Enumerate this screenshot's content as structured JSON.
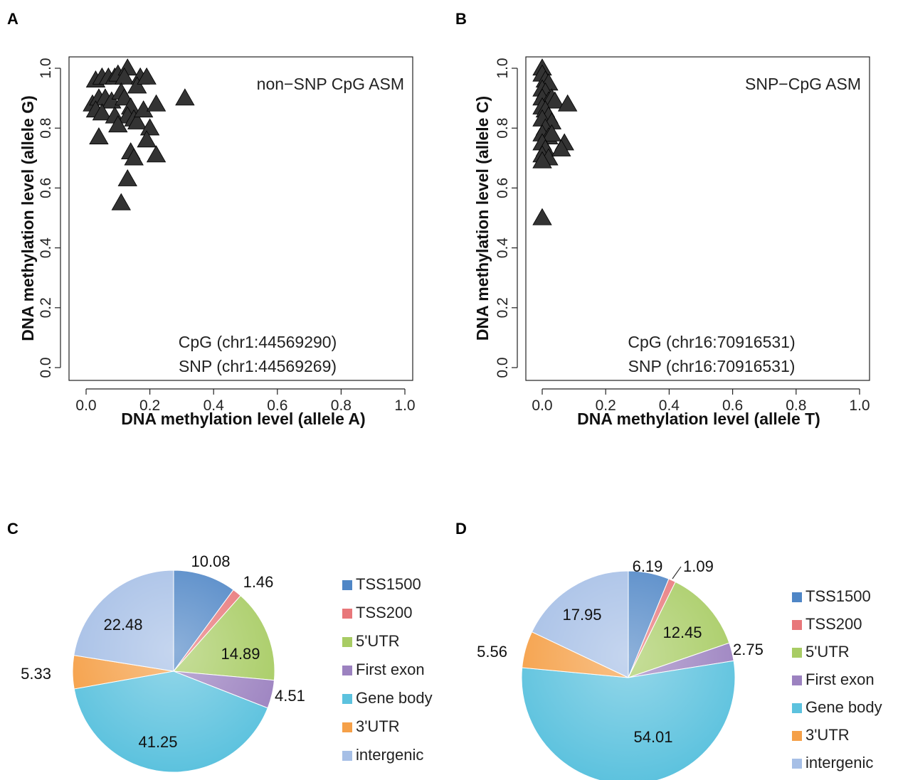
{
  "chart_data": [
    {
      "panel": "A",
      "type": "scatter",
      "title": "",
      "annotation": "non−SNP CpG ASM",
      "annotation_lines": [
        "CpG (chr1:44569290)",
        "SNP (chr1:44569269)"
      ],
      "xlabel": "DNA methylation level (allele A)",
      "ylabel": "DNA methylation level (allele G)",
      "xlim": [
        0,
        1.0
      ],
      "ylim": [
        0,
        1.0
      ],
      "xticks": [
        "0.0",
        "0.2",
        "0.4",
        "0.6",
        "0.8",
        "1.0"
      ],
      "yticks": [
        "0.0",
        "0.2",
        "0.4",
        "0.6",
        "0.8",
        "1.0"
      ],
      "marker": "triangle",
      "color": "#333333",
      "points": [
        [
          0.03,
          0.96
        ],
        [
          0.05,
          0.97
        ],
        [
          0.07,
          0.97
        ],
        [
          0.09,
          0.97
        ],
        [
          0.1,
          0.98
        ],
        [
          0.13,
          1.0
        ],
        [
          0.12,
          0.97
        ],
        [
          0.17,
          0.97
        ],
        [
          0.16,
          0.94
        ],
        [
          0.19,
          0.97
        ],
        [
          0.02,
          0.88
        ],
        [
          0.04,
          0.9
        ],
        [
          0.06,
          0.9
        ],
        [
          0.08,
          0.89
        ],
        [
          0.03,
          0.86
        ],
        [
          0.05,
          0.85
        ],
        [
          0.11,
          0.92
        ],
        [
          0.12,
          0.9
        ],
        [
          0.14,
          0.87
        ],
        [
          0.09,
          0.84
        ],
        [
          0.13,
          0.84
        ],
        [
          0.15,
          0.83
        ],
        [
          0.1,
          0.81
        ],
        [
          0.16,
          0.82
        ],
        [
          0.18,
          0.86
        ],
        [
          0.2,
          0.8
        ],
        [
          0.22,
          0.88
        ],
        [
          0.19,
          0.76
        ],
        [
          0.04,
          0.77
        ],
        [
          0.14,
          0.72
        ],
        [
          0.15,
          0.7
        ],
        [
          0.22,
          0.71
        ],
        [
          0.13,
          0.63
        ],
        [
          0.11,
          0.55
        ],
        [
          0.31,
          0.9
        ]
      ]
    },
    {
      "panel": "B",
      "type": "scatter",
      "title": "",
      "annotation": "SNP−CpG ASM",
      "annotation_lines": [
        "CpG (chr16:70916531)",
        "SNP (chr16:70916531)"
      ],
      "xlabel": "DNA methylation level (allele T)",
      "ylabel": "DNA methylation level (allele C)",
      "xlim": [
        0,
        1.0
      ],
      "ylim": [
        0,
        1.0
      ],
      "xticks": [
        "0.0",
        "0.2",
        "0.4",
        "0.6",
        "0.8",
        "1.0"
      ],
      "yticks": [
        "0.0",
        "0.2",
        "0.4",
        "0.6",
        "0.8",
        "1.0"
      ],
      "marker": "triangle",
      "color": "#333333",
      "points": [
        [
          0.0,
          1.0
        ],
        [
          0.0,
          0.98
        ],
        [
          0.01,
          0.96
        ],
        [
          0.02,
          0.95
        ],
        [
          0.0,
          0.93
        ],
        [
          0.01,
          0.92
        ],
        [
          0.0,
          0.9
        ],
        [
          0.02,
          0.89
        ],
        [
          0.03,
          0.9
        ],
        [
          0.04,
          0.89
        ],
        [
          0.0,
          0.87
        ],
        [
          0.01,
          0.86
        ],
        [
          0.02,
          0.84
        ],
        [
          0.0,
          0.83
        ],
        [
          0.03,
          0.82
        ],
        [
          0.01,
          0.8
        ],
        [
          0.0,
          0.78
        ],
        [
          0.02,
          0.77
        ],
        [
          0.03,
          0.78
        ],
        [
          0.0,
          0.75
        ],
        [
          0.01,
          0.73
        ],
        [
          0.0,
          0.71
        ],
        [
          0.02,
          0.7
        ],
        [
          0.07,
          0.75
        ],
        [
          0.06,
          0.73
        ],
        [
          0.08,
          0.88
        ],
        [
          0.0,
          0.69
        ],
        [
          0.0,
          0.5
        ]
      ]
    },
    {
      "panel": "C",
      "type": "pie",
      "title": "",
      "slices": [
        {
          "label": "TSS1500",
          "value": 10.08,
          "color": "#4f86c6"
        },
        {
          "label": "TSS200",
          "value": 1.46,
          "color": "#e8777a"
        },
        {
          "label": "5'UTR",
          "value": 14.89,
          "color": "#a8cc64"
        },
        {
          "label": "First exon",
          "value": 4.51,
          "color": "#9c82c0"
        },
        {
          "label": "Gene body",
          "value": 41.25,
          "color": "#5cc2de"
        },
        {
          "label": "3'UTR",
          "value": 5.33,
          "color": "#f5a048"
        },
        {
          "label": "intergenic",
          "value": 22.48,
          "color": "#a6bfe6"
        }
      ],
      "value_labels": [
        "10.08",
        "1.46",
        "14.89",
        "4.51",
        "41.25",
        "5.33",
        "22.48"
      ]
    },
    {
      "panel": "D",
      "type": "pie",
      "title": "",
      "slices": [
        {
          "label": "TSS1500",
          "value": 6.19,
          "color": "#4f86c6"
        },
        {
          "label": "TSS200",
          "value": 1.09,
          "color": "#e8777a"
        },
        {
          "label": "5'UTR",
          "value": 12.45,
          "color": "#a8cc64"
        },
        {
          "label": "First exon",
          "value": 2.75,
          "color": "#9c82c0"
        },
        {
          "label": "Gene body",
          "value": 54.01,
          "color": "#5cc2de"
        },
        {
          "label": "3'UTR",
          "value": 5.56,
          "color": "#f5a048"
        },
        {
          "label": "intergenic",
          "value": 17.95,
          "color": "#a6bfe6"
        }
      ],
      "value_labels": [
        "6.19",
        "1.09",
        "12.45",
        "2.75",
        "54.01",
        "5.56",
        "17.95"
      ]
    }
  ]
}
